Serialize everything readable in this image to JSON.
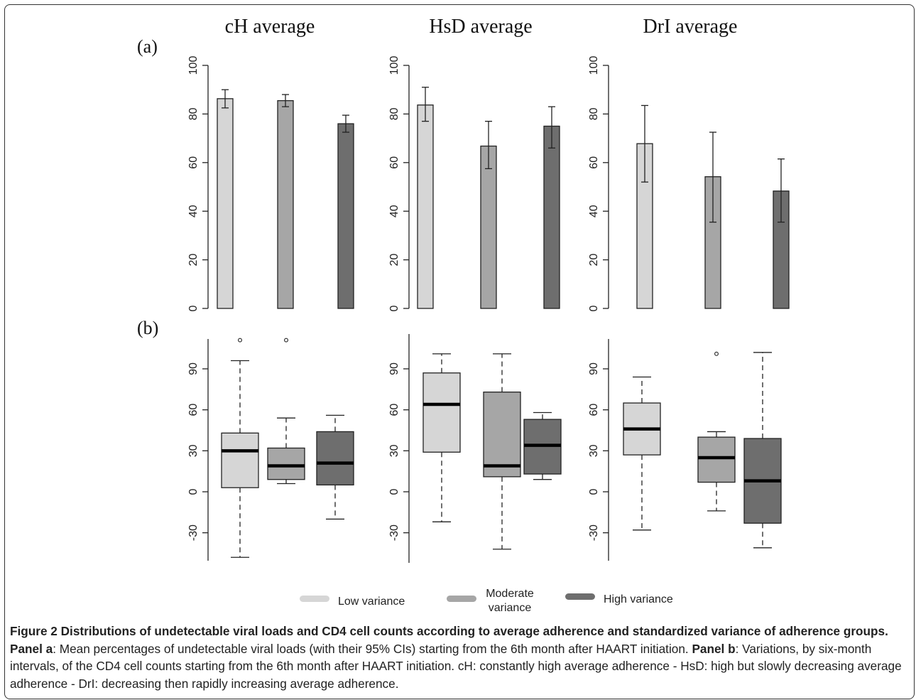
{
  "chart_data": [
    {
      "type": "bar",
      "panel": "(a)",
      "title": "cH average",
      "categories": [
        "Low variance",
        "Moderate variance",
        "High variance"
      ],
      "values": [
        86.3,
        85.5,
        76.0
      ],
      "error_low": [
        82.5,
        83.0,
        72.5
      ],
      "error_high": [
        90.0,
        88.0,
        79.5
      ],
      "ylim": [
        0,
        100
      ],
      "yticks": [
        "0",
        "20",
        "40",
        "60",
        "80",
        "100"
      ]
    },
    {
      "type": "bar",
      "panel": "",
      "title": "HsD average",
      "categories": [
        "Low variance",
        "Moderate variance",
        "High variance"
      ],
      "values": [
        83.7,
        66.8,
        75.0
      ],
      "error_low": [
        77.0,
        57.5,
        66.0
      ],
      "error_high": [
        91.0,
        77.0,
        83.0
      ],
      "ylim": [
        0,
        100
      ],
      "yticks": [
        "0",
        "20",
        "40",
        "60",
        "80",
        "100"
      ]
    },
    {
      "type": "bar",
      "panel": "",
      "title": "DrI average",
      "categories": [
        "Low variance",
        "Moderate variance",
        "High variance"
      ],
      "values": [
        67.8,
        54.2,
        48.3
      ],
      "error_low": [
        52.0,
        35.5,
        35.5
      ],
      "error_high": [
        83.5,
        72.5,
        61.5
      ],
      "ylim": [
        0,
        100
      ],
      "yticks": [
        "0",
        "20",
        "40",
        "60",
        "80",
        "100"
      ]
    },
    {
      "type": "box",
      "panel": "(b)",
      "categories": [
        "Low variance",
        "Moderate variance",
        "High variance"
      ],
      "boxes": [
        {
          "whisker_low": -48,
          "q1": 3,
          "median": 30,
          "q3": 43,
          "whisker_high": 96,
          "outliers": [
            111
          ]
        },
        {
          "whisker_low": 6,
          "q1": 9,
          "median": 19,
          "q3": 32,
          "whisker_high": 54,
          "outliers": [
            111
          ]
        },
        {
          "whisker_low": -20,
          "q1": 5,
          "median": 21,
          "q3": 44,
          "whisker_high": 56,
          "outliers": []
        }
      ],
      "yticks": [
        "-30",
        "0",
        "30",
        "60",
        "90"
      ]
    },
    {
      "type": "box",
      "panel": "",
      "categories": [
        "Low variance",
        "Moderate variance",
        "High variance"
      ],
      "boxes": [
        {
          "whisker_low": -22,
          "q1": 29,
          "median": 64,
          "q3": 87,
          "whisker_high": 101,
          "outliers": []
        },
        {
          "whisker_low": -42,
          "q1": 11,
          "median": 19,
          "q3": 73,
          "whisker_high": 101,
          "outliers": []
        },
        {
          "whisker_low": 9,
          "q1": 13,
          "median": 34,
          "q3": 53,
          "whisker_high": 58,
          "outliers": []
        }
      ],
      "yticks": [
        "-30",
        "0",
        "30",
        "60",
        "90"
      ]
    },
    {
      "type": "box",
      "panel": "",
      "categories": [
        "Low variance",
        "Moderate variance",
        "High variance"
      ],
      "boxes": [
        {
          "whisker_low": -28,
          "q1": 27,
          "median": 46,
          "q3": 65,
          "whisker_high": 84,
          "outliers": []
        },
        {
          "whisker_low": -14,
          "q1": 7,
          "median": 25,
          "q3": 40,
          "whisker_high": 44,
          "outliers": [
            101
          ]
        },
        {
          "whisker_low": -41,
          "q1": -23,
          "median": 8,
          "q3": 39,
          "whisker_high": 102,
          "outliers": []
        }
      ],
      "yticks": [
        "-30",
        "0",
        "30",
        "60",
        "90"
      ]
    }
  ],
  "legend": {
    "items": [
      {
        "label": "Low variance",
        "color": "#d6d6d6"
      },
      {
        "label_line1": "Moderate",
        "label_line2": "variance",
        "color": "#a6a6a6"
      },
      {
        "label": "High variance",
        "color": "#6e6e6e"
      }
    ]
  },
  "colors": {
    "low": "#d6d6d6",
    "moderate": "#a6a6a6",
    "high": "#6e6e6e"
  },
  "caption": {
    "title": "Figure 2 Distributions of undetectable viral loads and CD4 cell counts according to average adherence and standardized variance of adherence groups.",
    "panel_a_label": "Panel a",
    "panel_a_text": ": Mean percentages of undetectable viral loads (with their 95% CIs) starting from the 6th month after HAART initiation.",
    "panel_b_label": "Panel b",
    "panel_b_text": ": Variations, by six-month intervals, of the CD4 cell counts starting from the 6th month after HAART initiation. cH: constantly high average adherence - HsD: high but slowly decreasing average adherence - DrI: decreasing then rapidly increasing average adherence."
  }
}
